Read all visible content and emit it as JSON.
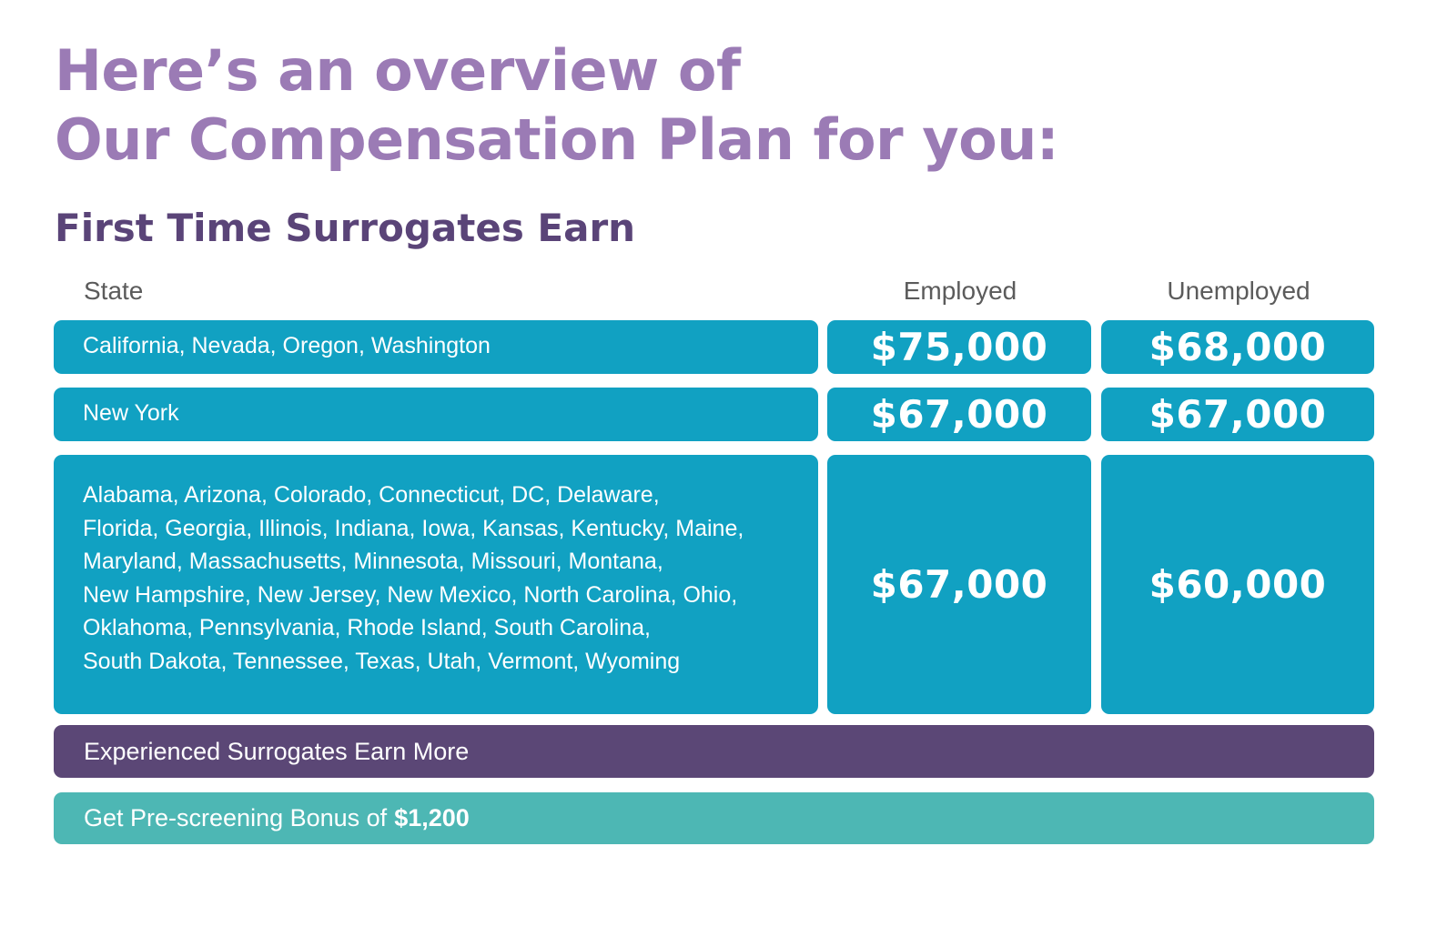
{
  "headline": {
    "line1": "Here’s an overview of",
    "line2": "Our Compensation Plan for you:"
  },
  "subheadline": "First Time Surrogates Earn",
  "table": {
    "headers": {
      "state": "State",
      "employed": "Employed",
      "unemployed": "Unemployed"
    },
    "rows": [
      {
        "states_lines": [
          "California, Nevada, Oregon, Washington"
        ],
        "employed": "$75,000",
        "unemployed": "$68,000"
      },
      {
        "states_lines": [
          "New York"
        ],
        "employed": "$67,000",
        "unemployed": "$67,000"
      },
      {
        "states_lines": [
          "Alabama, Arizona, Colorado, Connecticut, DC, Delaware,",
          "Florida, Georgia, Illinois, Indiana, Iowa, Kansas, Kentucky, Maine,",
          "Maryland, Massachusetts, Minnesota, Missouri, Montana,",
          "New Hampshire, New Jersey, New Mexico, North Carolina, Ohio,",
          "Oklahoma, Pennsylvania, Rhode Island, South Carolina,",
          "South Dakota, Tennessee, Texas, Utah, Vermont, Wyoming"
        ],
        "employed": "$67,000",
        "unemployed": "$60,000"
      }
    ]
  },
  "experienced_banner": "Experienced Surrogates Earn More",
  "bonus_banner": {
    "text": "Get Pre-screening Bonus of",
    "amount": "$1,200"
  },
  "colors": {
    "headline": "#9b7bb5",
    "subheadline": "#5a4478",
    "cell": "#11a1c2",
    "experienced_banner": "#5b4776",
    "bonus_banner": "#4db7b4"
  }
}
